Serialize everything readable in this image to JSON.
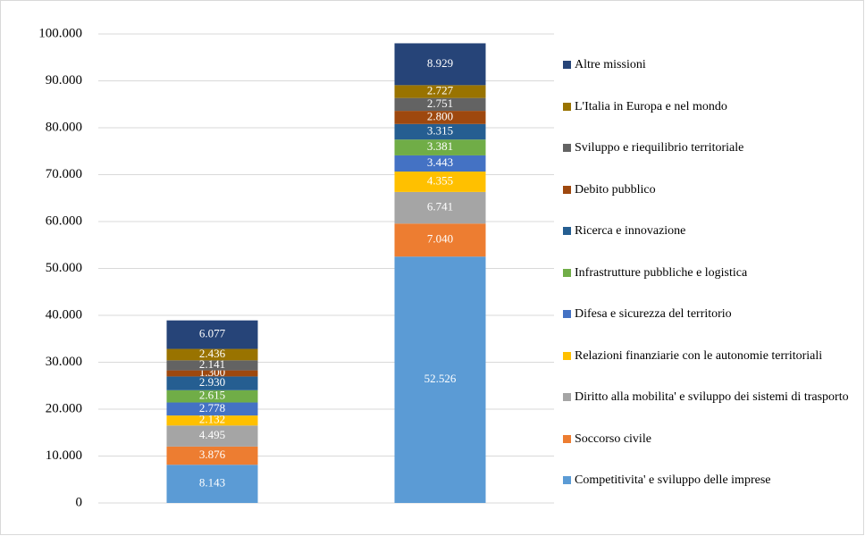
{
  "chart_data": {
    "type": "bar",
    "stacked": true,
    "categories": [
      null,
      null
    ],
    "ylim": [
      0,
      100000
    ],
    "yticks": [
      0,
      {
        "value": 10000,
        "label": "10.000"
      },
      {
        "value": 20000,
        "label": "20.000"
      },
      {
        "value": 30000,
        "label": "30.000"
      },
      {
        "value": 40000,
        "label": "40.000"
      },
      {
        "value": 50000,
        "label": "50.000"
      },
      {
        "value": 60000,
        "label": "60.000"
      },
      {
        "value": 70000,
        "label": "70.000"
      },
      {
        "value": 80000,
        "label": "80.000"
      },
      {
        "value": 90000,
        "label": "90.000"
      },
      {
        "value": 100000,
        "label": "100.000"
      }
    ],
    "grid": true,
    "legend": "right",
    "series": [
      {
        "name": "Competitivita' e sviluppo delle imprese",
        "color": "#5b9bd5",
        "values": [
          8143,
          52526
        ],
        "value_labels": [
          "8.143",
          "52.526"
        ]
      },
      {
        "name": "Soccorso civile",
        "color": "#ed7d31",
        "values": [
          3876,
          7040
        ],
        "value_labels": [
          "3.876",
          "7.040"
        ]
      },
      {
        "name": "Diritto alla mobilita' e sviluppo dei sistemi di trasporto",
        "color": "#a5a5a5",
        "values": [
          4495,
          6741
        ],
        "value_labels": [
          "4.495",
          "6.741"
        ]
      },
      {
        "name": "Relazioni finanziarie con le autonomie territoriali",
        "color": "#ffc000",
        "values": [
          2132,
          4355
        ],
        "value_labels": [
          "2.132",
          "4.355"
        ]
      },
      {
        "name": "Difesa e sicurezza del territorio",
        "color": "#4472c4",
        "values": [
          2778,
          3443
        ],
        "value_labels": [
          "2.778",
          "3.443"
        ]
      },
      {
        "name": "Infrastrutture pubbliche e logistica",
        "color": "#70ad47",
        "values": [
          2615,
          3381
        ],
        "value_labels": [
          "2.615",
          "3.381"
        ]
      },
      {
        "name": "Ricerca e innovazione",
        "color": "#255e91",
        "values": [
          2930,
          3315
        ],
        "value_labels": [
          "2.930",
          "3.315"
        ]
      },
      {
        "name": "Debito pubblico",
        "color": "#9e480e",
        "values": [
          1300,
          2800
        ],
        "value_labels": [
          "1.300",
          "2.800"
        ]
      },
      {
        "name": "Sviluppo e riequilibrio territoriale",
        "color": "#636363",
        "values": [
          2141,
          2751
        ],
        "value_labels": [
          "2.141",
          "2.751"
        ]
      },
      {
        "name": "L'Italia in Europa e nel mondo",
        "color": "#997300",
        "values": [
          2436,
          2727
        ],
        "value_labels": [
          "2.436",
          "2.727"
        ]
      },
      {
        "name": "Altre missioni",
        "color": "#264478",
        "values": [
          6077,
          8929
        ],
        "value_labels": [
          "6.077",
          "8.929"
        ]
      }
    ]
  }
}
